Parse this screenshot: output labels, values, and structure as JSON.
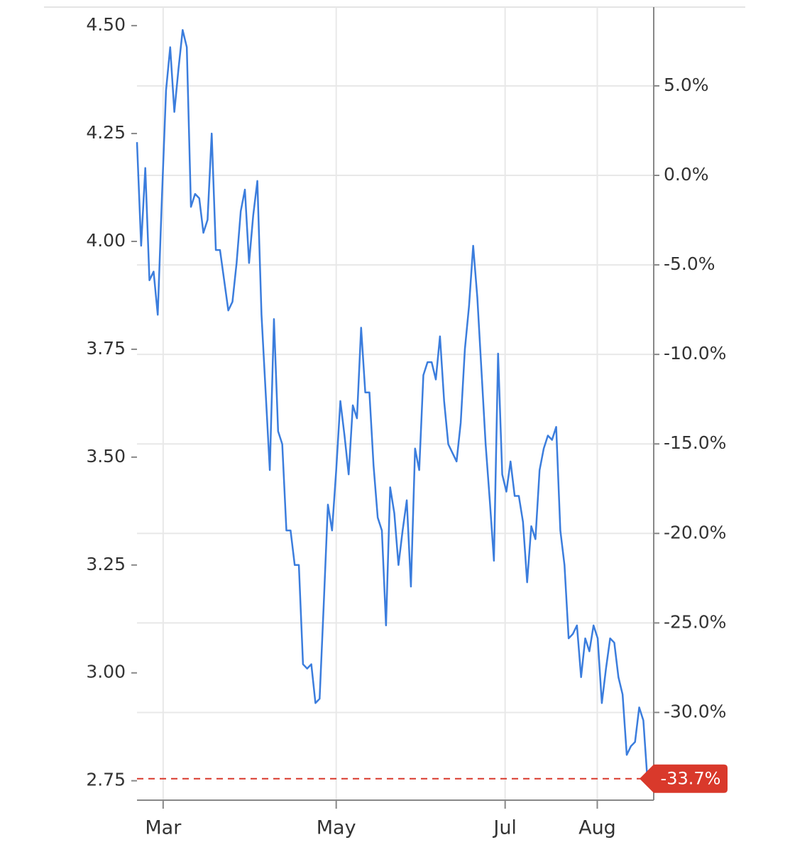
{
  "chart_data": {
    "type": "line",
    "series": [
      {
        "color": "#3b7ddd",
        "values": [
          4.23,
          3.99,
          4.17,
          3.91,
          3.93,
          3.83,
          4.1,
          4.35,
          4.45,
          4.3,
          4.4,
          4.49,
          4.45,
          4.08,
          4.11,
          4.1,
          4.02,
          4.05,
          4.25,
          3.98,
          3.98,
          3.91,
          3.84,
          3.86,
          3.95,
          4.07,
          4.12,
          3.95,
          4.06,
          4.14,
          3.83,
          3.65,
          3.47,
          3.82,
          3.56,
          3.53,
          3.33,
          3.33,
          3.25,
          3.25,
          3.02,
          3.01,
          3.02,
          2.93,
          2.94,
          3.16,
          3.39,
          3.33,
          3.47,
          3.63,
          3.55,
          3.46,
          3.62,
          3.59,
          3.8,
          3.65,
          3.65,
          3.48,
          3.36,
          3.33,
          3.11,
          3.43,
          3.37,
          3.25,
          3.33,
          3.4,
          3.2,
          3.52,
          3.47,
          3.69,
          3.72,
          3.72,
          3.68,
          3.78,
          3.63,
          3.53,
          3.51,
          3.49,
          3.58,
          3.75,
          3.85,
          3.99,
          3.87,
          3.7,
          3.53,
          3.4,
          3.26,
          3.74,
          3.46,
          3.42,
          3.49,
          3.41,
          3.41,
          3.35,
          3.21,
          3.34,
          3.31,
          3.47,
          3.52,
          3.55,
          3.54,
          3.57,
          3.33,
          3.25,
          3.08,
          3.09,
          3.11,
          2.99,
          3.08,
          3.05,
          3.11,
          3.08,
          2.93,
          3.01,
          3.08,
          3.07,
          2.99,
          2.95,
          2.81,
          2.83,
          2.84,
          2.92,
          2.89,
          2.75
        ]
      }
    ],
    "xlim": [
      0,
      124.5
    ],
    "xticks": [
      {
        "value": 6.3,
        "label": "Mar"
      },
      {
        "value": 48.0,
        "label": "May"
      },
      {
        "value": 88.7,
        "label": "Jul"
      },
      {
        "value": 110.9,
        "label": "Aug"
      }
    ],
    "ylim": [
      2.705,
      4.543
    ],
    "yticks": [
      {
        "value": 4.5,
        "label": "4.50"
      },
      {
        "value": 4.25,
        "label": "4.25"
      },
      {
        "value": 4,
        "label": "4.00"
      },
      {
        "value": 3.75,
        "label": "3.75"
      },
      {
        "value": 3.5,
        "label": "3.50"
      },
      {
        "value": 3.25,
        "label": "3.25"
      },
      {
        "value": 3,
        "label": "3.00"
      },
      {
        "value": 2.75,
        "label": "2.75"
      }
    ],
    "y2lim": [
      -34.9,
      9.4
    ],
    "y2ticks": [
      {
        "value": 5,
        "label": "5.0%"
      },
      {
        "value": 0,
        "label": "0.0%"
      },
      {
        "value": -5,
        "label": "-5.0%"
      },
      {
        "value": -10,
        "label": "-10.0%"
      },
      {
        "value": -15,
        "label": "-15.0%"
      },
      {
        "value": -20,
        "label": "-20.0%"
      },
      {
        "value": -25,
        "label": "-25.0%"
      },
      {
        "value": -30,
        "label": "-30.0%"
      }
    ],
    "grid": true,
    "reference": {
      "value": -33.7,
      "label": "-33.7%",
      "axis": "y2",
      "color": "#d9392b"
    }
  }
}
